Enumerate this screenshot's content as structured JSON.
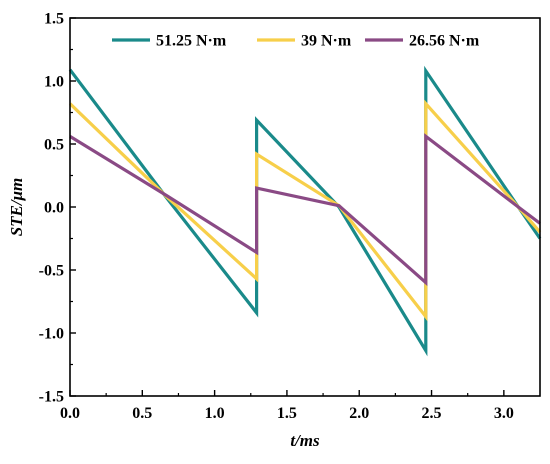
{
  "chart_data": {
    "type": "line",
    "title": "",
    "xlabel": "t/ms",
    "ylabel": "STE/μm",
    "xlim": [
      0,
      3.25
    ],
    "ylim": [
      -1.5,
      1.5
    ],
    "x_ticks": [
      0,
      0.5,
      1,
      1.5,
      2,
      2.5,
      3
    ],
    "x_tick_labels": [
      "0.0",
      "0.5",
      "1.0",
      "1.5",
      "2.0",
      "2.5",
      "3.0"
    ],
    "y_ticks": [
      -1.5,
      -1,
      -0.5,
      0,
      0.5,
      1,
      1.5
    ],
    "y_tick_labels": [
      "-1.5",
      "-1.0",
      "-0.5",
      "0.0",
      "0.5",
      "1.0",
      "1.5"
    ],
    "grid": false,
    "legend_position": "top",
    "series": [
      {
        "name": "51.25 N·m",
        "color": "#1a8a8a",
        "x": [
          0,
          0.67,
          1.29,
          1.29,
          1.86,
          2.46,
          2.46,
          3.1,
          3.25
        ],
        "y": [
          1.09,
          0.07,
          -0.84,
          0.69,
          0.0,
          -1.14,
          1.08,
          0.0,
          -0.25
        ]
      },
      {
        "name": "39 N·m",
        "color": "#f7cf4a",
        "x": [
          0,
          0.67,
          1.29,
          1.29,
          1.86,
          2.46,
          2.46,
          3.1,
          3.25
        ],
        "y": [
          0.82,
          0.08,
          -0.57,
          0.42,
          0.01,
          -0.87,
          0.82,
          0.0,
          -0.2
        ]
      },
      {
        "name": "26.56 N·m",
        "color": "#8a4a85",
        "x": [
          0,
          0.67,
          1.29,
          1.29,
          1.86,
          2.46,
          2.46,
          3.1,
          3.25
        ],
        "y": [
          0.56,
          0.09,
          -0.36,
          0.15,
          0.01,
          -0.6,
          0.56,
          0.0,
          -0.13
        ]
      }
    ]
  }
}
